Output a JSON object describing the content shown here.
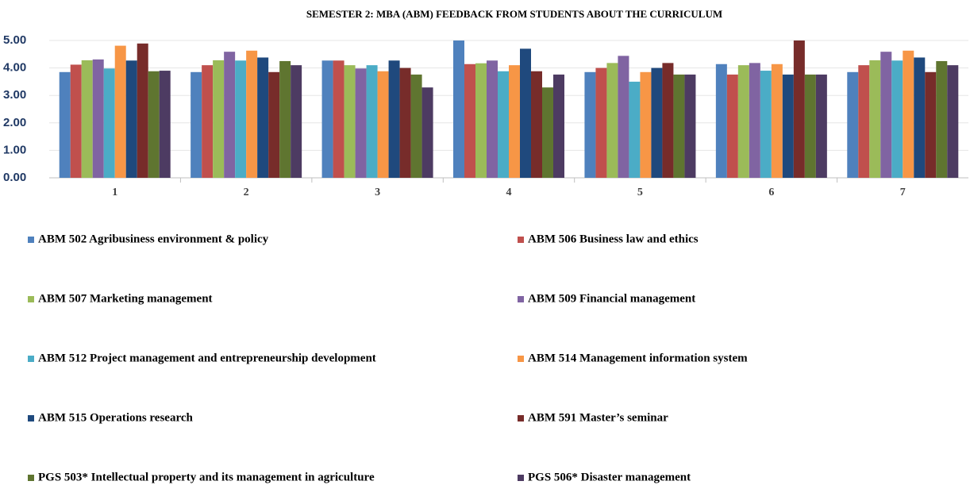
{
  "chart_data": {
    "type": "bar",
    "title": "SEMESTER 2: MBA (ABM) FEEDBACK FROM STUDENTS ABOUT THE CURRICULUM",
    "categories": [
      "1",
      "2",
      "3",
      "4",
      "5",
      "6",
      "7"
    ],
    "ylim": [
      0,
      5
    ],
    "yticks": [
      {
        "value": 0,
        "label": "0.00"
      },
      {
        "value": 1,
        "label": "1.00"
      },
      {
        "value": 2,
        "label": "2.00"
      },
      {
        "value": 3,
        "label": "3.00"
      },
      {
        "value": 4,
        "label": "4.00"
      },
      {
        "value": 5,
        "label": "5.00"
      }
    ],
    "grid": true,
    "legend": "bottom",
    "series": [
      {
        "name": "ABM 502 Agribusiness environment & policy",
        "color": "#4f81bd",
        "values": [
          3.85,
          3.85,
          4.27,
          5.0,
          3.85,
          4.14,
          3.85
        ]
      },
      {
        "name": "ABM 506 Business law and ethics",
        "color": "#c0504d",
        "values": [
          4.12,
          4.1,
          4.27,
          4.14,
          4.0,
          3.76,
          4.1
        ]
      },
      {
        "name": "ABM 507 Marketing management",
        "color": "#9bbb59",
        "values": [
          4.28,
          4.28,
          4.1,
          4.17,
          4.18,
          4.1,
          4.28
        ]
      },
      {
        "name": "ABM 509 Financial management",
        "color": "#8064a2",
        "values": [
          4.31,
          4.59,
          3.98,
          4.27,
          4.44,
          4.18,
          4.59
        ]
      },
      {
        "name": "ABM 512 Project management and entrepreneurship development",
        "color": "#4bacc6",
        "values": [
          3.98,
          4.27,
          4.1,
          3.88,
          3.5,
          3.9,
          4.27
        ]
      },
      {
        "name": "ABM 514 Management information system",
        "color": "#f79646",
        "values": [
          4.81,
          4.63,
          3.88,
          4.1,
          3.85,
          4.14,
          4.63
        ]
      },
      {
        "name": "ABM 515 Operations research",
        "color": "#1f497d",
        "values": [
          4.27,
          4.38,
          4.27,
          4.7,
          4.0,
          3.76,
          4.38
        ]
      },
      {
        "name": "ABM 591 Master’s seminar",
        "color": "#772c2a",
        "values": [
          4.89,
          3.85,
          4.0,
          3.88,
          4.18,
          5.0,
          3.85
        ]
      },
      {
        "name": "PGS 503* Intellectual property and its management in agriculture",
        "color": "#5f7530",
        "values": [
          3.88,
          4.25,
          3.76,
          3.29,
          3.76,
          3.76,
          4.25
        ]
      },
      {
        "name": "PGS 506* Disaster management",
        "color": "#4d3b62",
        "values": [
          3.9,
          4.1,
          3.29,
          3.76,
          3.76,
          3.76,
          4.1
        ]
      }
    ]
  }
}
